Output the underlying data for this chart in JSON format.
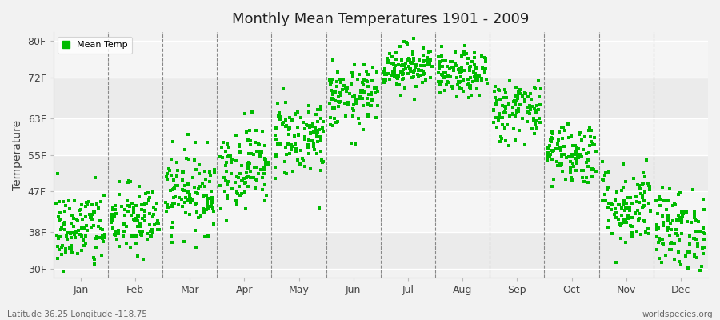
{
  "title": "Monthly Mean Temperatures 1901 - 2009",
  "ylabel": "Temperature",
  "ytick_labels": [
    "30F",
    "38F",
    "47F",
    "55F",
    "63F",
    "72F",
    "80F"
  ],
  "ytick_values": [
    30,
    38,
    47,
    55,
    63,
    72,
    80
  ],
  "ylim": [
    28,
    82
  ],
  "xlim": [
    0,
    12
  ],
  "months": [
    "Jan",
    "Feb",
    "Mar",
    "Apr",
    "May",
    "Jun",
    "Jul",
    "Aug",
    "Sep",
    "Oct",
    "Nov",
    "Dec"
  ],
  "dot_color": "#00BB00",
  "background_color": "#f2f2f2",
  "legend_label": "Mean Temp",
  "footer_left": "Latitude 36.25 Longitude -118.75",
  "footer_right": "worldspecies.org",
  "n_years": 109,
  "monthly_means": [
    38.5,
    40.5,
    47.0,
    52.5,
    59.0,
    67.5,
    74.5,
    72.5,
    65.0,
    55.5,
    44.0,
    38.5
  ],
  "monthly_stds": [
    4.5,
    4.0,
    4.5,
    4.5,
    4.5,
    3.5,
    2.5,
    2.5,
    3.5,
    3.5,
    4.5,
    4.5
  ],
  "band_colors": [
    "#ebebeb",
    "#f5f5f5"
  ],
  "divider_positions": [
    1,
    2,
    3,
    4,
    5,
    6,
    7,
    8,
    9,
    10,
    11
  ]
}
